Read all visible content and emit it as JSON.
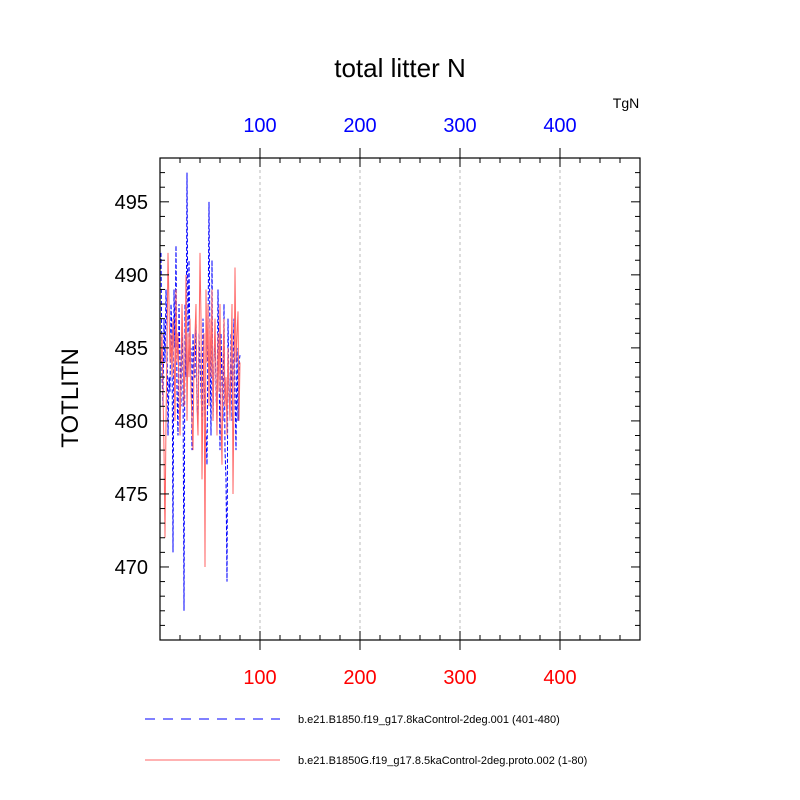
{
  "chart_data": {
    "type": "line",
    "title": "total litter N",
    "ylabel": "TOTLITN",
    "units_label": "TgN",
    "xlim": [
      0,
      480
    ],
    "ylim": [
      465,
      498
    ],
    "grid": "vertical dashed",
    "x_ticks": [
      100,
      200,
      300,
      400
    ],
    "x_tick_labels": [
      "100",
      "200",
      "300",
      "400"
    ],
    "y_ticks": [
      470,
      475,
      480,
      485,
      490,
      495
    ],
    "y_tick_labels": [
      "470",
      "475",
      "480",
      "485",
      "490",
      "495"
    ],
    "colors": {
      "bottom_axis_labels": "#ff0000",
      "top_axis_labels": "#0000ff"
    },
    "series": [
      {
        "name": "b.e21.B1850.f19_g17.8kaControl-2deg.001 (401-480)",
        "color": "#0000ff",
        "dash": "dashed",
        "x": [
          1,
          2,
          3,
          4,
          5,
          6,
          7,
          8,
          9,
          10,
          11,
          12,
          13,
          14,
          15,
          16,
          17,
          18,
          19,
          20,
          21,
          22,
          23,
          24,
          25,
          26,
          27,
          28,
          29,
          30,
          31,
          32,
          33,
          34,
          35,
          36,
          37,
          38,
          39,
          40,
          41,
          42,
          43,
          44,
          45,
          46,
          47,
          48,
          49,
          50,
          51,
          52,
          53,
          54,
          55,
          56,
          57,
          58,
          59,
          60,
          61,
          62,
          63,
          64,
          65,
          66,
          67,
          68,
          69,
          70,
          71,
          72,
          73,
          74,
          75,
          76,
          77,
          78,
          79,
          80
        ],
        "values": [
          491.5,
          483,
          481,
          487,
          484,
          489,
          486,
          479,
          483,
          482,
          488,
          486,
          471,
          489,
          485,
          492,
          482,
          479,
          488,
          484,
          481,
          487,
          483,
          467,
          488,
          483,
          497,
          485,
          491,
          484,
          485,
          478,
          486,
          483,
          483,
          487,
          481,
          480,
          486,
          484,
          482,
          480,
          487,
          483,
          481,
          479,
          477,
          486,
          495,
          485,
          479,
          491,
          480,
          484,
          486,
          482,
          480,
          489,
          484,
          478,
          486,
          483,
          480,
          488,
          478,
          476,
          469,
          487,
          482,
          481,
          486,
          480,
          484,
          487,
          482,
          478,
          485,
          480,
          484,
          484.5
        ]
      },
      {
        "name": "b.e21.B1850G.f19_g17.8.5kaControl-2deg.proto.002 (1-80)",
        "color": "#ff6666",
        "dash": "solid",
        "x": [
          1,
          2,
          3,
          4,
          5,
          6,
          7,
          8,
          9,
          10,
          11,
          12,
          13,
          14,
          15,
          16,
          17,
          18,
          19,
          20,
          21,
          22,
          23,
          24,
          25,
          26,
          27,
          28,
          29,
          30,
          31,
          32,
          33,
          34,
          35,
          36,
          37,
          38,
          39,
          40,
          41,
          42,
          43,
          44,
          45,
          46,
          47,
          48,
          49,
          50,
          51,
          52,
          53,
          54,
          55,
          56,
          57,
          58,
          59,
          60,
          61,
          62,
          63,
          64,
          65,
          66,
          67,
          68,
          69,
          70,
          71,
          72,
          73,
          74,
          75,
          76,
          77,
          78,
          79,
          80
        ],
        "values": [
          484,
          486,
          482,
          478,
          472,
          480,
          485,
          491.5,
          488,
          484,
          486,
          483,
          487,
          485,
          480,
          489,
          484,
          486,
          482,
          479,
          483,
          488,
          485,
          481,
          484,
          490,
          480,
          486,
          483,
          487,
          482,
          480,
          478,
          484,
          486,
          488,
          481,
          479,
          485,
          491.5,
          487,
          476,
          482,
          486,
          470,
          489,
          484,
          488,
          481,
          487,
          483,
          489,
          480,
          484,
          487,
          483,
          479,
          486,
          482,
          488,
          480,
          477,
          484,
          487,
          481,
          483,
          479,
          485,
          482,
          480,
          484,
          488,
          475,
          482,
          490.5,
          484,
          486,
          487.5,
          480,
          484
        ]
      }
    ]
  },
  "legend": {
    "entries": [
      {
        "label": "b.e21.B1850.f19_g17.8kaControl-2deg.001 (401-480)",
        "color": "#0000ff",
        "dash": "dashed"
      },
      {
        "label": "b.e21.B1850G.f19_g17.8.5kaControl-2deg.proto.002 (1-80)",
        "color": "#ff6666",
        "dash": "solid"
      }
    ]
  }
}
